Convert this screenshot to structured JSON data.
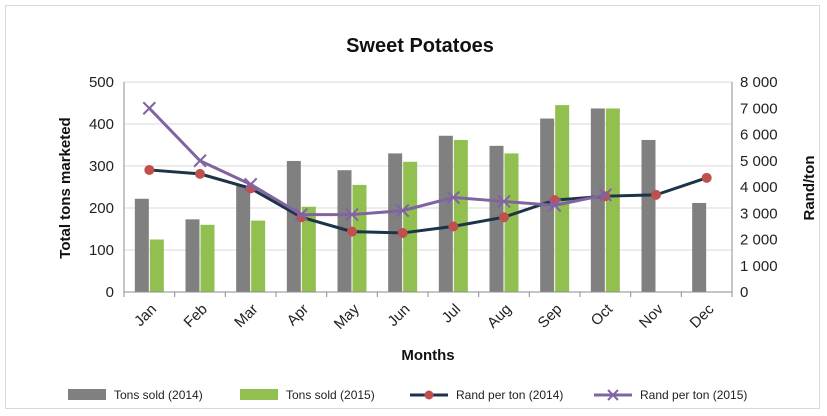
{
  "chart_data": {
    "type": "bar",
    "title": "Sweet Potatoes",
    "xlabel": "Months",
    "ylabel": "Total tons marketed",
    "y2label": "Rand/ton",
    "categories": [
      "Jan",
      "Feb",
      "Mar",
      "Apr",
      "May",
      "Jun",
      "Jul",
      "Aug",
      "Sep",
      "Oct",
      "Nov",
      "Dec"
    ],
    "ylim": [
      0,
      500
    ],
    "yticks": [
      "0",
      "100",
      "200",
      "300",
      "400",
      "500"
    ],
    "y2lim": [
      0,
      8000
    ],
    "y2ticks": [
      "0",
      "1 000",
      "2 000",
      "3 000",
      "4 000",
      "5 000",
      "6 000",
      "7 000",
      "8 000"
    ],
    "grid": true,
    "legend_position": "bottom",
    "series": [
      {
        "name": "Tons sold (2014)",
        "type": "bar",
        "axis": "left",
        "color": "#808080",
        "values": [
          222,
          173,
          253,
          312,
          290,
          330,
          372,
          348,
          413,
          437,
          362,
          212
        ]
      },
      {
        "name": "Tons sold (2015)",
        "type": "bar",
        "axis": "left",
        "color": "#92c050",
        "values": [
          125,
          160,
          170,
          203,
          255,
          310,
          362,
          330,
          445,
          437,
          null,
          null
        ]
      },
      {
        "name": "Rand per ton (2014)",
        "type": "line",
        "axis": "right",
        "color": "#1c3348",
        "marker": "circle",
        "marker_color": "#c0504d",
        "values": [
          4650,
          4500,
          3950,
          2850,
          2300,
          2250,
          2500,
          2850,
          3500,
          3650,
          3700,
          4350
        ]
      },
      {
        "name": "Rand per ton (2015)",
        "type": "line",
        "axis": "right",
        "color": "#8064a2",
        "marker": "x",
        "values": [
          7000,
          5000,
          4100,
          2950,
          2950,
          3100,
          3600,
          3450,
          3300,
          3700,
          null,
          null
        ]
      }
    ]
  }
}
